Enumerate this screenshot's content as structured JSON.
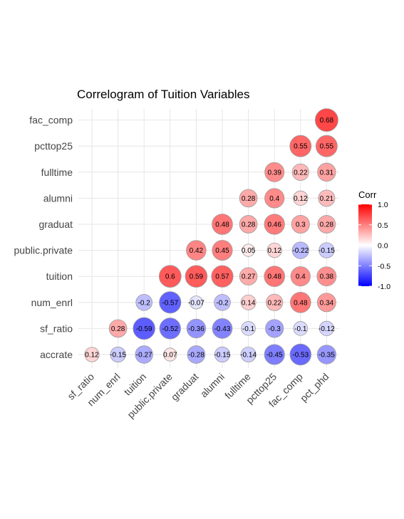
{
  "chart_data": {
    "type": "heatmap",
    "title": "Correlogram of Tuition Variables",
    "x_categories": [
      "sf_ratio",
      "num_enrl",
      "tuition",
      "public.private",
      "graduat",
      "alumni",
      "fulltime",
      "pcttop25",
      "fac_comp",
      "pct_phd"
    ],
    "y_categories": [
      "accrate",
      "sf_ratio",
      "num_enrl",
      "tuition",
      "public.private",
      "graduat",
      "alumni",
      "fulltime",
      "pcttop25",
      "fac_comp"
    ],
    "cells": [
      {
        "x": "sf_ratio",
        "y": "accrate",
        "value": 0.12,
        "label": "0.12"
      },
      {
        "x": "num_enrl",
        "y": "accrate",
        "value": -0.15,
        "label": "-0.15"
      },
      {
        "x": "tuition",
        "y": "accrate",
        "value": -0.27,
        "label": "-0.27"
      },
      {
        "x": "public.private",
        "y": "accrate",
        "value": 0.07,
        "label": "0.07"
      },
      {
        "x": "graduat",
        "y": "accrate",
        "value": -0.28,
        "label": "-0.28"
      },
      {
        "x": "alumni",
        "y": "accrate",
        "value": -0.15,
        "label": "-0.15"
      },
      {
        "x": "fulltime",
        "y": "accrate",
        "value": -0.14,
        "label": "-0.14"
      },
      {
        "x": "pcttop25",
        "y": "accrate",
        "value": -0.45,
        "label": "-0.45"
      },
      {
        "x": "fac_comp",
        "y": "accrate",
        "value": -0.53,
        "label": "-0.53"
      },
      {
        "x": "pct_phd",
        "y": "accrate",
        "value": -0.35,
        "label": "-0.35"
      },
      {
        "x": "num_enrl",
        "y": "sf_ratio",
        "value": 0.28,
        "label": "0.28"
      },
      {
        "x": "tuition",
        "y": "sf_ratio",
        "value": -0.59,
        "label": "-0.59"
      },
      {
        "x": "public.private",
        "y": "sf_ratio",
        "value": -0.52,
        "label": "-0.52"
      },
      {
        "x": "graduat",
        "y": "sf_ratio",
        "value": -0.36,
        "label": "-0.36"
      },
      {
        "x": "alumni",
        "y": "sf_ratio",
        "value": -0.43,
        "label": "-0.43"
      },
      {
        "x": "fulltime",
        "y": "sf_ratio",
        "value": -0.1,
        "label": "-0.1"
      },
      {
        "x": "pcttop25",
        "y": "sf_ratio",
        "value": -0.3,
        "label": "-0.3"
      },
      {
        "x": "fac_comp",
        "y": "sf_ratio",
        "value": -0.1,
        "label": "-0.1"
      },
      {
        "x": "pct_phd",
        "y": "sf_ratio",
        "value": -0.12,
        "label": "-0.12"
      },
      {
        "x": "tuition",
        "y": "num_enrl",
        "value": -0.2,
        "label": "-0.2"
      },
      {
        "x": "public.private",
        "y": "num_enrl",
        "value": -0.57,
        "label": "-0.57"
      },
      {
        "x": "graduat",
        "y": "num_enrl",
        "value": -0.07,
        "label": "-0.07"
      },
      {
        "x": "alumni",
        "y": "num_enrl",
        "value": -0.2,
        "label": "-0.2"
      },
      {
        "x": "fulltime",
        "y": "num_enrl",
        "value": 0.14,
        "label": "0.14"
      },
      {
        "x": "pcttop25",
        "y": "num_enrl",
        "value": 0.22,
        "label": "0.22"
      },
      {
        "x": "fac_comp",
        "y": "num_enrl",
        "value": 0.48,
        "label": "0.48"
      },
      {
        "x": "pct_phd",
        "y": "num_enrl",
        "value": 0.34,
        "label": "0.34"
      },
      {
        "x": "public.private",
        "y": "tuition",
        "value": 0.6,
        "label": "0.6"
      },
      {
        "x": "graduat",
        "y": "tuition",
        "value": 0.59,
        "label": "0.59"
      },
      {
        "x": "alumni",
        "y": "tuition",
        "value": 0.57,
        "label": "0.57"
      },
      {
        "x": "fulltime",
        "y": "tuition",
        "value": 0.27,
        "label": "0.27"
      },
      {
        "x": "pcttop25",
        "y": "tuition",
        "value": 0.48,
        "label": "0.48"
      },
      {
        "x": "fac_comp",
        "y": "tuition",
        "value": 0.4,
        "label": "0.4"
      },
      {
        "x": "pct_phd",
        "y": "tuition",
        "value": 0.38,
        "label": "0.38"
      },
      {
        "x": "graduat",
        "y": "public.private",
        "value": 0.42,
        "label": "0.42"
      },
      {
        "x": "alumni",
        "y": "public.private",
        "value": 0.45,
        "label": "0.45"
      },
      {
        "x": "fulltime",
        "y": "public.private",
        "value": 0.05,
        "label": "0.05"
      },
      {
        "x": "pcttop25",
        "y": "public.private",
        "value": 0.12,
        "label": "0.12"
      },
      {
        "x": "fac_comp",
        "y": "public.private",
        "value": -0.22,
        "label": "-0.22"
      },
      {
        "x": "pct_phd",
        "y": "public.private",
        "value": -0.15,
        "label": "-0.15"
      },
      {
        "x": "alumni",
        "y": "graduat",
        "value": 0.48,
        "label": "0.48"
      },
      {
        "x": "fulltime",
        "y": "graduat",
        "value": 0.28,
        "label": "0.28"
      },
      {
        "x": "pcttop25",
        "y": "graduat",
        "value": 0.46,
        "label": "0.46"
      },
      {
        "x": "fac_comp",
        "y": "graduat",
        "value": 0.3,
        "label": "0.3"
      },
      {
        "x": "pct_phd",
        "y": "graduat",
        "value": 0.28,
        "label": "0.28"
      },
      {
        "x": "fulltime",
        "y": "alumni",
        "value": 0.28,
        "label": "0.28"
      },
      {
        "x": "pcttop25",
        "y": "alumni",
        "value": 0.4,
        "label": "0.4"
      },
      {
        "x": "fac_comp",
        "y": "alumni",
        "value": 0.12,
        "label": "0.12"
      },
      {
        "x": "pct_phd",
        "y": "alumni",
        "value": 0.21,
        "label": "0.21"
      },
      {
        "x": "pcttop25",
        "y": "fulltime",
        "value": 0.39,
        "label": "0.39"
      },
      {
        "x": "fac_comp",
        "y": "fulltime",
        "value": 0.22,
        "label": "0.22"
      },
      {
        "x": "pct_phd",
        "y": "fulltime",
        "value": 0.31,
        "label": "0.31"
      },
      {
        "x": "fac_comp",
        "y": "pcttop25",
        "value": 0.55,
        "label": "0.55"
      },
      {
        "x": "pct_phd",
        "y": "pcttop25",
        "value": 0.55,
        "label": "0.55"
      },
      {
        "x": "pct_phd",
        "y": "fac_comp",
        "value": 0.68,
        "label": "0.68"
      }
    ],
    "legend": {
      "title": "Corr",
      "position": "right",
      "ticks": [
        1.0,
        0.5,
        0.0,
        -0.5,
        -1.0
      ],
      "tick_labels": [
        "1.0",
        "0.5",
        "0.0",
        "-0.5",
        "-1.0"
      ],
      "range": [
        -1,
        1
      ],
      "colors": {
        "low": "#0000ff",
        "mid": "#ffffff",
        "high": "#ff0000"
      }
    },
    "grid": true
  }
}
